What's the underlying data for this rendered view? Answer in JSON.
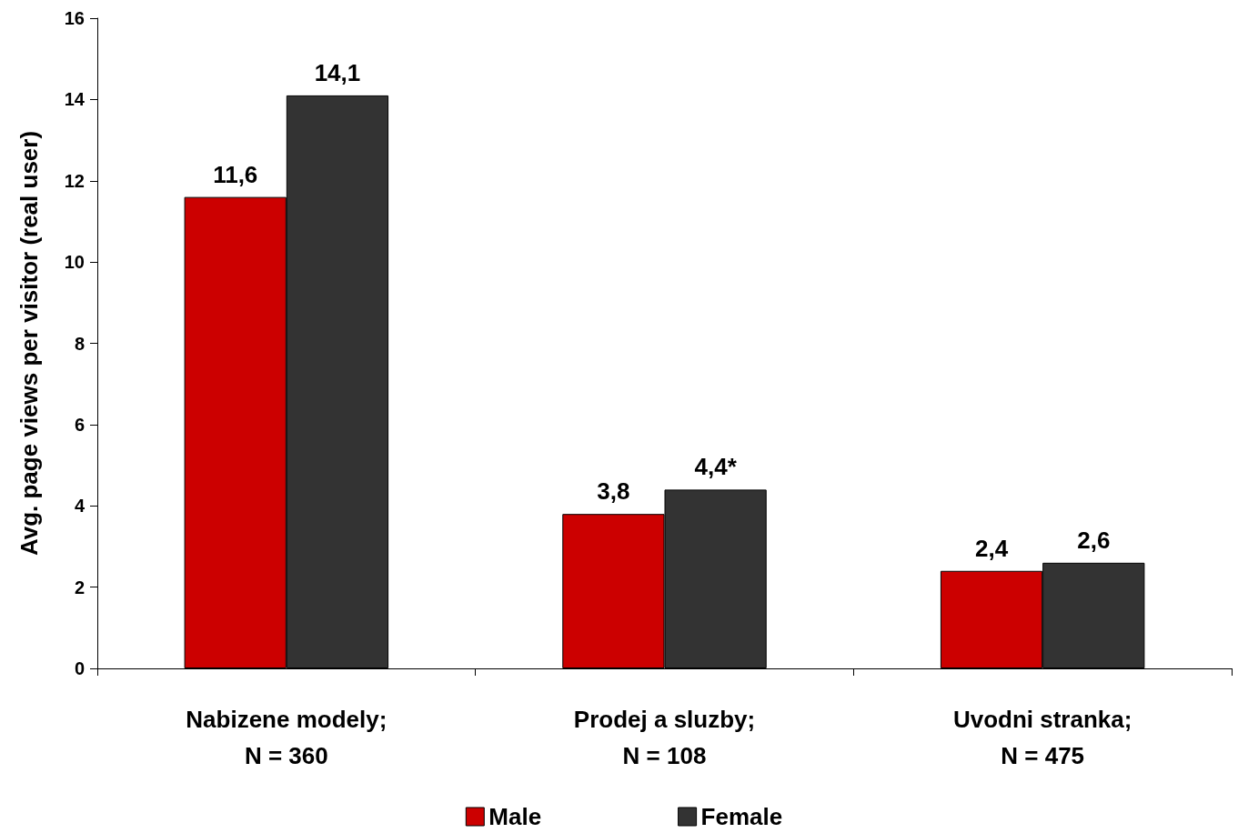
{
  "chart_data": {
    "type": "bar",
    "ylabel": "Avg. page views per visitor (real user)",
    "categories": [
      "Nabizene modely;\nN = 360",
      "Prodej a sluzby;\nN = 108",
      "Uvodni stranka;\nN = 475"
    ],
    "series": [
      {
        "name": "Male",
        "color": "#cc0000",
        "values": [
          11.6,
          3.8,
          2.4
        ],
        "value_labels": [
          "11,6",
          "3,8",
          "2,4"
        ]
      },
      {
        "name": "Female",
        "color": "#333333",
        "values": [
          14.1,
          4.4,
          2.6
        ],
        "value_labels": [
          "14,1",
          "4,4*",
          "2,6"
        ]
      }
    ],
    "ylim": [
      0,
      16
    ],
    "yticks": [
      0,
      2,
      4,
      6,
      8,
      10,
      12,
      14,
      16
    ],
    "grid": false,
    "legend": "bottom"
  }
}
